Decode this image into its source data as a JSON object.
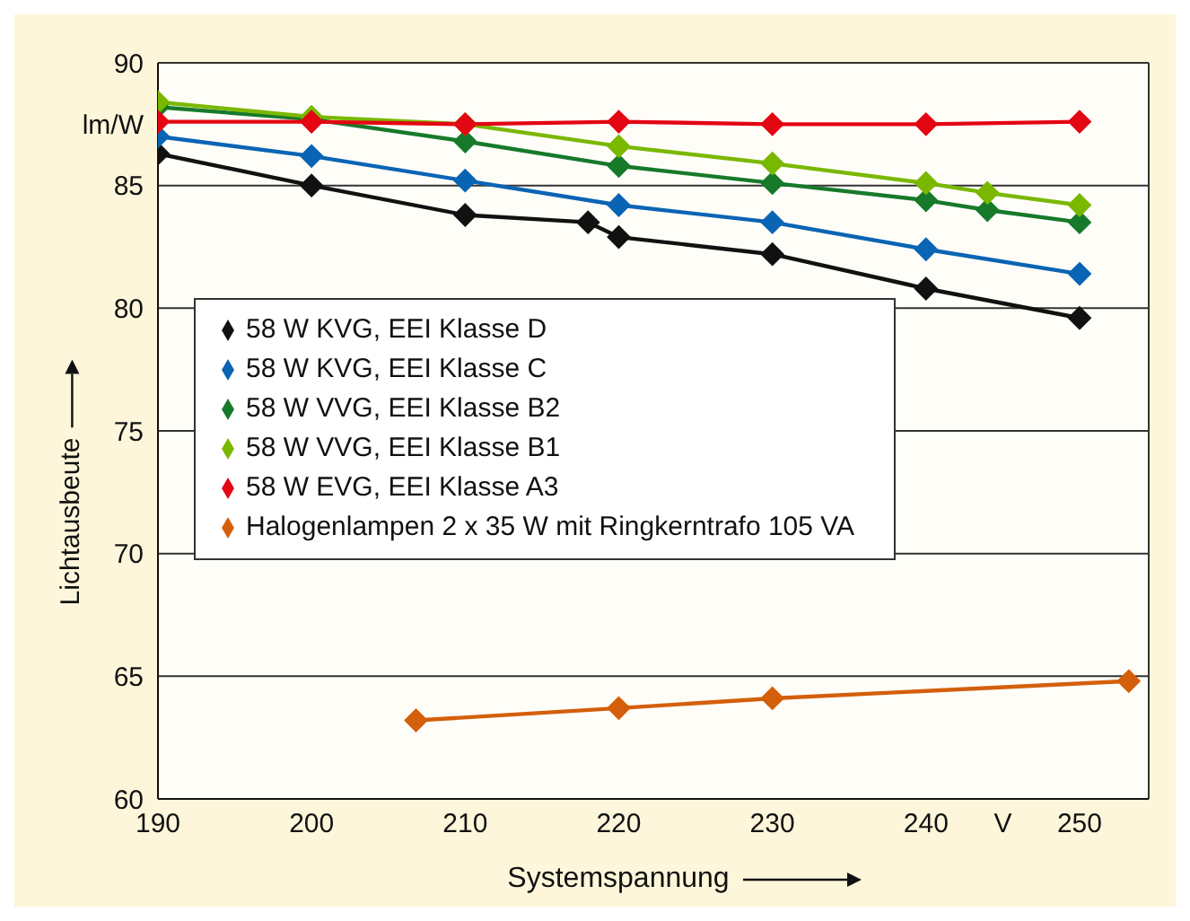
{
  "chart_data": {
    "type": "line",
    "xlabel": "Systemspannung",
    "ylabel": "Lichtausbeute",
    "xlim": [
      190,
      254.5
    ],
    "ylim": [
      60,
      90
    ],
    "xticks": [
      190,
      200,
      210,
      220,
      230,
      {
        "value": 240,
        "label": "240"
      },
      {
        "value": 245,
        "label": "V"
      },
      250
    ],
    "yticks": [
      60,
      65,
      70,
      75,
      80,
      85,
      {
        "value": 87.5,
        "label": "lm/W"
      },
      90
    ],
    "grid": true,
    "legend": "center",
    "marker": "diamond",
    "line_style": "solid",
    "series": [
      {
        "name": "58 W KVG, EEI Klasse D",
        "color": "#111111",
        "x": [
          190,
          200,
          210,
          218,
          220,
          230,
          240,
          250
        ],
        "values": [
          86.3,
          85.0,
          83.8,
          83.5,
          82.9,
          82.2,
          80.8,
          79.6
        ]
      },
      {
        "name": "58 W KVG, EEI Klasse C",
        "color": "#0a64b4",
        "x": [
          190,
          200,
          210,
          220,
          230,
          240,
          250
        ],
        "values": [
          87.0,
          86.2,
          85.2,
          84.2,
          83.5,
          82.4,
          81.4
        ]
      },
      {
        "name": "58 W VVG, EEI Klasse B2",
        "color": "#167a2a",
        "x": [
          190,
          200,
          210,
          220,
          230,
          240,
          244,
          250
        ],
        "values": [
          88.2,
          87.7,
          86.8,
          85.8,
          85.1,
          84.4,
          84.0,
          83.5
        ]
      },
      {
        "name": "58 W VVG, EEI Klasse B1",
        "color": "#7ab800",
        "x": [
          190,
          200,
          210,
          220,
          230,
          240,
          244,
          250
        ],
        "values": [
          88.4,
          87.8,
          87.5,
          86.6,
          85.9,
          85.1,
          84.7,
          84.2
        ]
      },
      {
        "name": "58 W EVG, EEI Klasse A3",
        "color": "#e30613",
        "x": [
          190,
          200,
          210,
          220,
          230,
          240,
          250
        ],
        "values": [
          87.6,
          87.6,
          87.5,
          87.6,
          87.5,
          87.5,
          87.6
        ]
      },
      {
        "name": "Halogenlampen 2 x 35 W mit Ringkerntrafo 105 VA",
        "color": "#d45f0a",
        "x": [
          206.8,
          220,
          230,
          253.2
        ],
        "values": [
          63.2,
          63.7,
          64.1,
          64.8
        ]
      }
    ]
  }
}
